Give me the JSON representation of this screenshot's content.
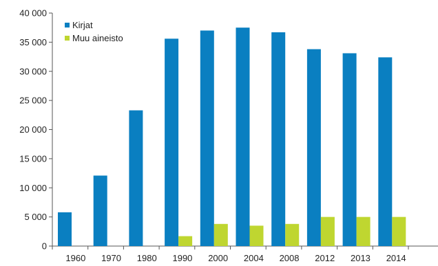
{
  "chart_data": {
    "type": "bar",
    "title": "",
    "xlabel": "",
    "ylabel": "",
    "categories": [
      "1960",
      "1970",
      "1980",
      "1990",
      "2000",
      "2004",
      "2008",
      "2012",
      "2013",
      "2014"
    ],
    "series": [
      {
        "name": "Kirjat",
        "color": "#0a7fc1",
        "values": [
          5800,
          12100,
          23300,
          35600,
          37000,
          37500,
          36700,
          33800,
          33100,
          32400
        ]
      },
      {
        "name": "Muu aineisto",
        "color": "#bfd630",
        "values": [
          null,
          null,
          null,
          1700,
          3800,
          3500,
          3800,
          5000,
          5000,
          5000
        ]
      }
    ],
    "ylim": [
      0,
      40000
    ],
    "yticks": [
      0,
      5000,
      10000,
      15000,
      20000,
      25000,
      30000,
      35000,
      40000
    ],
    "ytick_labels": [
      "0",
      "5 000",
      "10 000",
      "15 000",
      "20 000",
      "25 000",
      "30 000",
      "35 000",
      "40 000"
    ],
    "grid": false,
    "legend_position": "top-left"
  }
}
